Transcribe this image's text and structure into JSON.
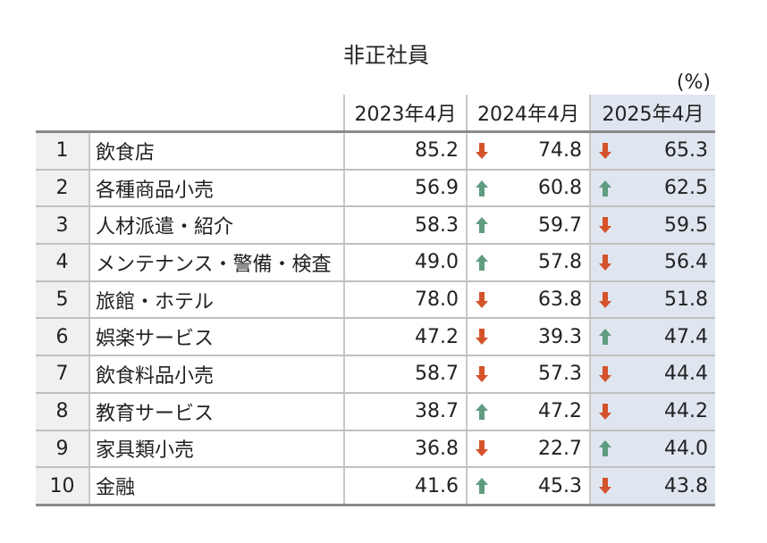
{
  "title": "非正社員",
  "unit": "(%)",
  "table": {
    "headers": [
      "2023年4月",
      "2024年4月",
      "2025年4月"
    ],
    "rows": [
      {
        "rank": 1,
        "name": "飲食店",
        "values": [
          "85.2",
          "74.8",
          "65.3"
        ],
        "trend": [
          "down",
          "down"
        ]
      },
      {
        "rank": 2,
        "name": "各種商品小売",
        "values": [
          "56.9",
          "60.8",
          "62.5"
        ],
        "trend": [
          "up",
          "up"
        ]
      },
      {
        "rank": 3,
        "name": "人材派遣・紹介",
        "values": [
          "58.3",
          "59.7",
          "59.5"
        ],
        "trend": [
          "up",
          "down"
        ]
      },
      {
        "rank": 4,
        "name": "メンテナンス・警備・検査",
        "values": [
          "49.0",
          "57.8",
          "56.4"
        ],
        "trend": [
          "up",
          "down"
        ]
      },
      {
        "rank": 5,
        "name": "旅館・ホテル",
        "values": [
          "78.0",
          "63.8",
          "51.8"
        ],
        "trend": [
          "down",
          "down"
        ]
      },
      {
        "rank": 6,
        "name": "娯楽サービス",
        "values": [
          "47.2",
          "39.3",
          "47.4"
        ],
        "trend": [
          "down",
          "up"
        ]
      },
      {
        "rank": 7,
        "name": "飲食料品小売",
        "values": [
          "58.7",
          "57.3",
          "44.4"
        ],
        "trend": [
          "down",
          "down"
        ]
      },
      {
        "rank": 8,
        "name": "教育サービス",
        "values": [
          "38.7",
          "47.2",
          "44.2"
        ],
        "trend": [
          "up",
          "down"
        ]
      },
      {
        "rank": 9,
        "name": "家具類小売",
        "values": [
          "36.8",
          "22.7",
          "44.0"
        ],
        "trend": [
          "down",
          "up"
        ]
      },
      {
        "rank": 10,
        "name": "金融",
        "values": [
          "41.6",
          "45.3",
          "43.8"
        ],
        "trend": [
          "up",
          "down"
        ]
      }
    ]
  },
  "arrow_colors": {
    "up": "#5f9c80",
    "down": "#d4532b"
  }
}
